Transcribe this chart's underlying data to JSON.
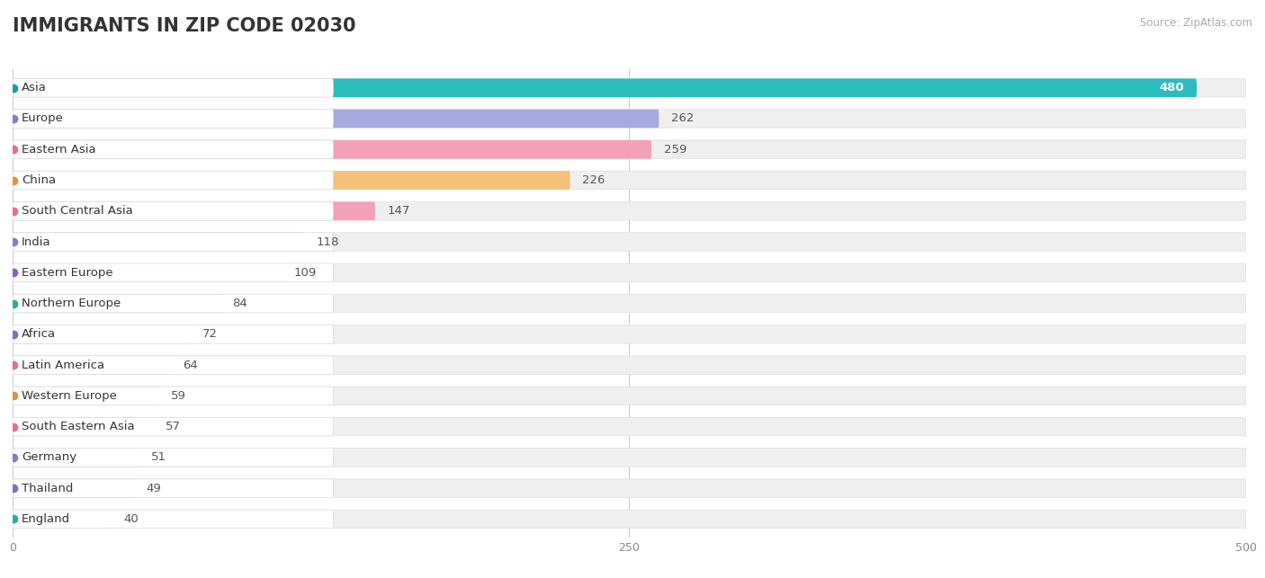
{
  "title": "IMMIGRANTS IN ZIP CODE 02030",
  "source": "Source: ZipAtlas.com",
  "categories": [
    "Asia",
    "Europe",
    "Eastern Asia",
    "China",
    "South Central Asia",
    "India",
    "Eastern Europe",
    "Northern Europe",
    "Africa",
    "Latin America",
    "Western Europe",
    "South Eastern Asia",
    "Germany",
    "Thailand",
    "England"
  ],
  "values": [
    480,
    262,
    259,
    226,
    147,
    118,
    109,
    84,
    72,
    64,
    59,
    57,
    51,
    49,
    40
  ],
  "colors": [
    "#2BBCBE",
    "#A8A8E0",
    "#F4A0B8",
    "#F5C07A",
    "#F4A0B8",
    "#A8A8E0",
    "#C0A0DC",
    "#60C0B8",
    "#B8B0DC",
    "#F4A0B8",
    "#F5C07A",
    "#F4A0B8",
    "#A8A8E0",
    "#C8B0DC",
    "#60C0B8"
  ],
  "dot_colors": [
    "#1A9FA0",
    "#8080C8",
    "#E07090",
    "#E09040",
    "#E07090",
    "#8080C8",
    "#9060C0",
    "#30A8A0",
    "#8070C0",
    "#E07090",
    "#E09040",
    "#E07090",
    "#8080C8",
    "#8070C0",
    "#30A8A0"
  ],
  "xlim": [
    0,
    500
  ],
  "xticks": [
    0,
    250,
    500
  ],
  "background_color": "#ffffff",
  "bar_bg_color": "#efefef",
  "bar_bg_border": "#e0e0e0",
  "title_fontsize": 15,
  "label_fontsize": 9.5,
  "value_fontsize": 9.5
}
